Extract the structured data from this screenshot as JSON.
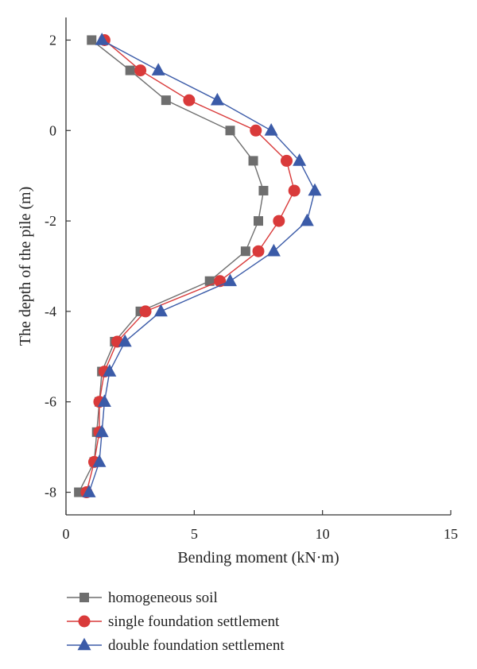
{
  "chart_data": {
    "type": "line",
    "xlabel": "Bending moment (kN·m)",
    "ylabel": "The depth of the pile (m)",
    "xlim": [
      0,
      15
    ],
    "ylim": [
      -8.5,
      2.5
    ],
    "xticks": [
      0,
      5,
      10,
      15
    ],
    "yticks": [
      2,
      0,
      -2,
      -4,
      -6,
      -8
    ],
    "legend_position": "bottom",
    "series": [
      {
        "name": "homogeneous soil",
        "color": "#6e6e6e",
        "marker": "square",
        "points": [
          [
            1.0,
            2.0
          ],
          [
            2.5,
            1.33
          ],
          [
            3.9,
            0.67
          ],
          [
            6.4,
            0.0
          ],
          [
            7.3,
            -0.67
          ],
          [
            7.7,
            -1.33
          ],
          [
            7.5,
            -2.0
          ],
          [
            7.0,
            -2.67
          ],
          [
            5.6,
            -3.33
          ],
          [
            2.9,
            -4.0
          ],
          [
            1.9,
            -4.67
          ],
          [
            1.4,
            -5.33
          ],
          [
            1.3,
            -6.0
          ],
          [
            1.2,
            -6.67
          ],
          [
            1.1,
            -7.33
          ],
          [
            0.5,
            -8.0
          ]
        ]
      },
      {
        "name": "single foundation settlement",
        "color": "#d93a3a",
        "marker": "circle",
        "points": [
          [
            1.5,
            2.0
          ],
          [
            2.9,
            1.33
          ],
          [
            4.8,
            0.67
          ],
          [
            7.4,
            0.0
          ],
          [
            8.6,
            -0.67
          ],
          [
            8.9,
            -1.33
          ],
          [
            8.3,
            -2.0
          ],
          [
            7.5,
            -2.67
          ],
          [
            6.0,
            -3.33
          ],
          [
            3.1,
            -4.0
          ],
          [
            2.0,
            -4.67
          ],
          [
            1.5,
            -5.33
          ],
          [
            1.3,
            -6.0
          ],
          [
            1.3,
            -6.67
          ],
          [
            1.1,
            -7.33
          ],
          [
            0.8,
            -8.0
          ]
        ]
      },
      {
        "name": "double foundation settlement",
        "color": "#3b5ba8",
        "marker": "triangle",
        "points": [
          [
            1.4,
            2.0
          ],
          [
            3.6,
            1.33
          ],
          [
            5.9,
            0.67
          ],
          [
            8.0,
            0.0
          ],
          [
            9.1,
            -0.67
          ],
          [
            9.7,
            -1.33
          ],
          [
            9.4,
            -2.0
          ],
          [
            8.1,
            -2.67
          ],
          [
            6.4,
            -3.33
          ],
          [
            3.7,
            -4.0
          ],
          [
            2.3,
            -4.67
          ],
          [
            1.7,
            -5.33
          ],
          [
            1.5,
            -6.0
          ],
          [
            1.4,
            -6.67
          ],
          [
            1.3,
            -7.33
          ],
          [
            0.9,
            -8.0
          ]
        ]
      }
    ]
  }
}
